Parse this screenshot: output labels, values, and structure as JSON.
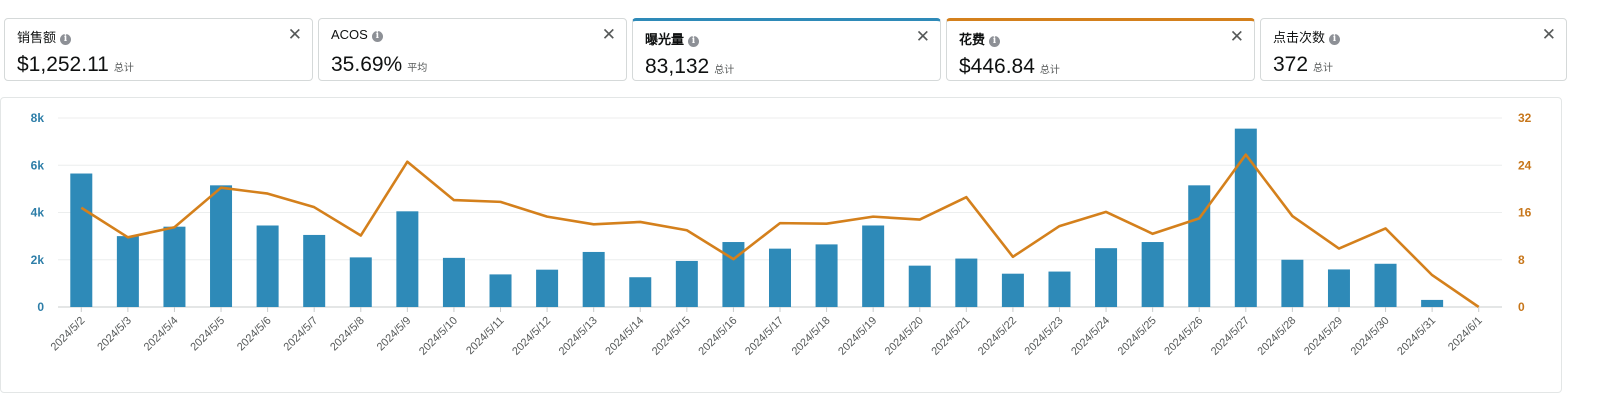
{
  "cards": [
    {
      "title": "销售额",
      "value": "$1,252.11",
      "unit": "总计"
    },
    {
      "title": "ACOS",
      "value": "35.69%",
      "unit": "平均"
    },
    {
      "title": "曝光量",
      "value": "83,132",
      "unit": "总计"
    },
    {
      "title": "花费",
      "value": "$446.84",
      "unit": "总计"
    },
    {
      "title": "点击次数",
      "value": "372",
      "unit": "总计"
    }
  ],
  "colors": {
    "impressions": "#2e8ab8",
    "spend": "#d4801c"
  },
  "chart_data": {
    "type": "bar",
    "categories": [
      "2024/5/2",
      "2024/5/3",
      "2024/5/4",
      "2024/5/5",
      "2024/5/6",
      "2024/5/7",
      "2024/5/8",
      "2024/5/9",
      "2024/5/10",
      "2024/5/11",
      "2024/5/12",
      "2024/5/13",
      "2024/5/14",
      "2024/5/15",
      "2024/5/16",
      "2024/5/17",
      "2024/5/18",
      "2024/5/19",
      "2024/5/20",
      "2024/5/21",
      "2024/5/22",
      "2024/5/23",
      "2024/5/24",
      "2024/5/25",
      "2024/5/26",
      "2024/5/27",
      "2024/5/28",
      "2024/5/29",
      "2024/5/30",
      "2024/5/31",
      "2024/6/1"
    ],
    "series": [
      {
        "type": "bar",
        "axis": "left",
        "values": [
          5650,
          3000,
          3400,
          5150,
          3450,
          3050,
          2100,
          4050,
          2080,
          1380,
          1580,
          2330,
          1260,
          1950,
          2750,
          2470,
          2650,
          3450,
          1750,
          2050,
          1410,
          1500,
          2490,
          2750,
          5150,
          7550,
          2000,
          1590,
          1830,
          300,
          0
        ]
      },
      {
        "type": "line",
        "axis": "right",
        "values": [
          16.8,
          11.8,
          13.5,
          20.2,
          19.2,
          16.9,
          12.1,
          24.6,
          18.1,
          17.8,
          15.3,
          14.0,
          14.4,
          13.0,
          8.1,
          14.2,
          14.1,
          15.3,
          14.8,
          18.6,
          8.5,
          13.7,
          16.1,
          12.4,
          15.0,
          25.8,
          15.4,
          9.9,
          13.3,
          5.4,
          0
        ]
      }
    ],
    "y_left": {
      "lim": [
        0,
        8000
      ],
      "ticks": [
        0,
        2000,
        4000,
        6000,
        8000
      ],
      "tick_labels": [
        "0",
        "2k",
        "4k",
        "6k",
        "8k"
      ]
    },
    "y_right": {
      "lim": [
        0,
        32
      ],
      "ticks": [
        0,
        8,
        16,
        24,
        32
      ],
      "tick_labels": [
        "0",
        "8",
        "16",
        "24",
        "32"
      ]
    },
    "grid": true
  }
}
